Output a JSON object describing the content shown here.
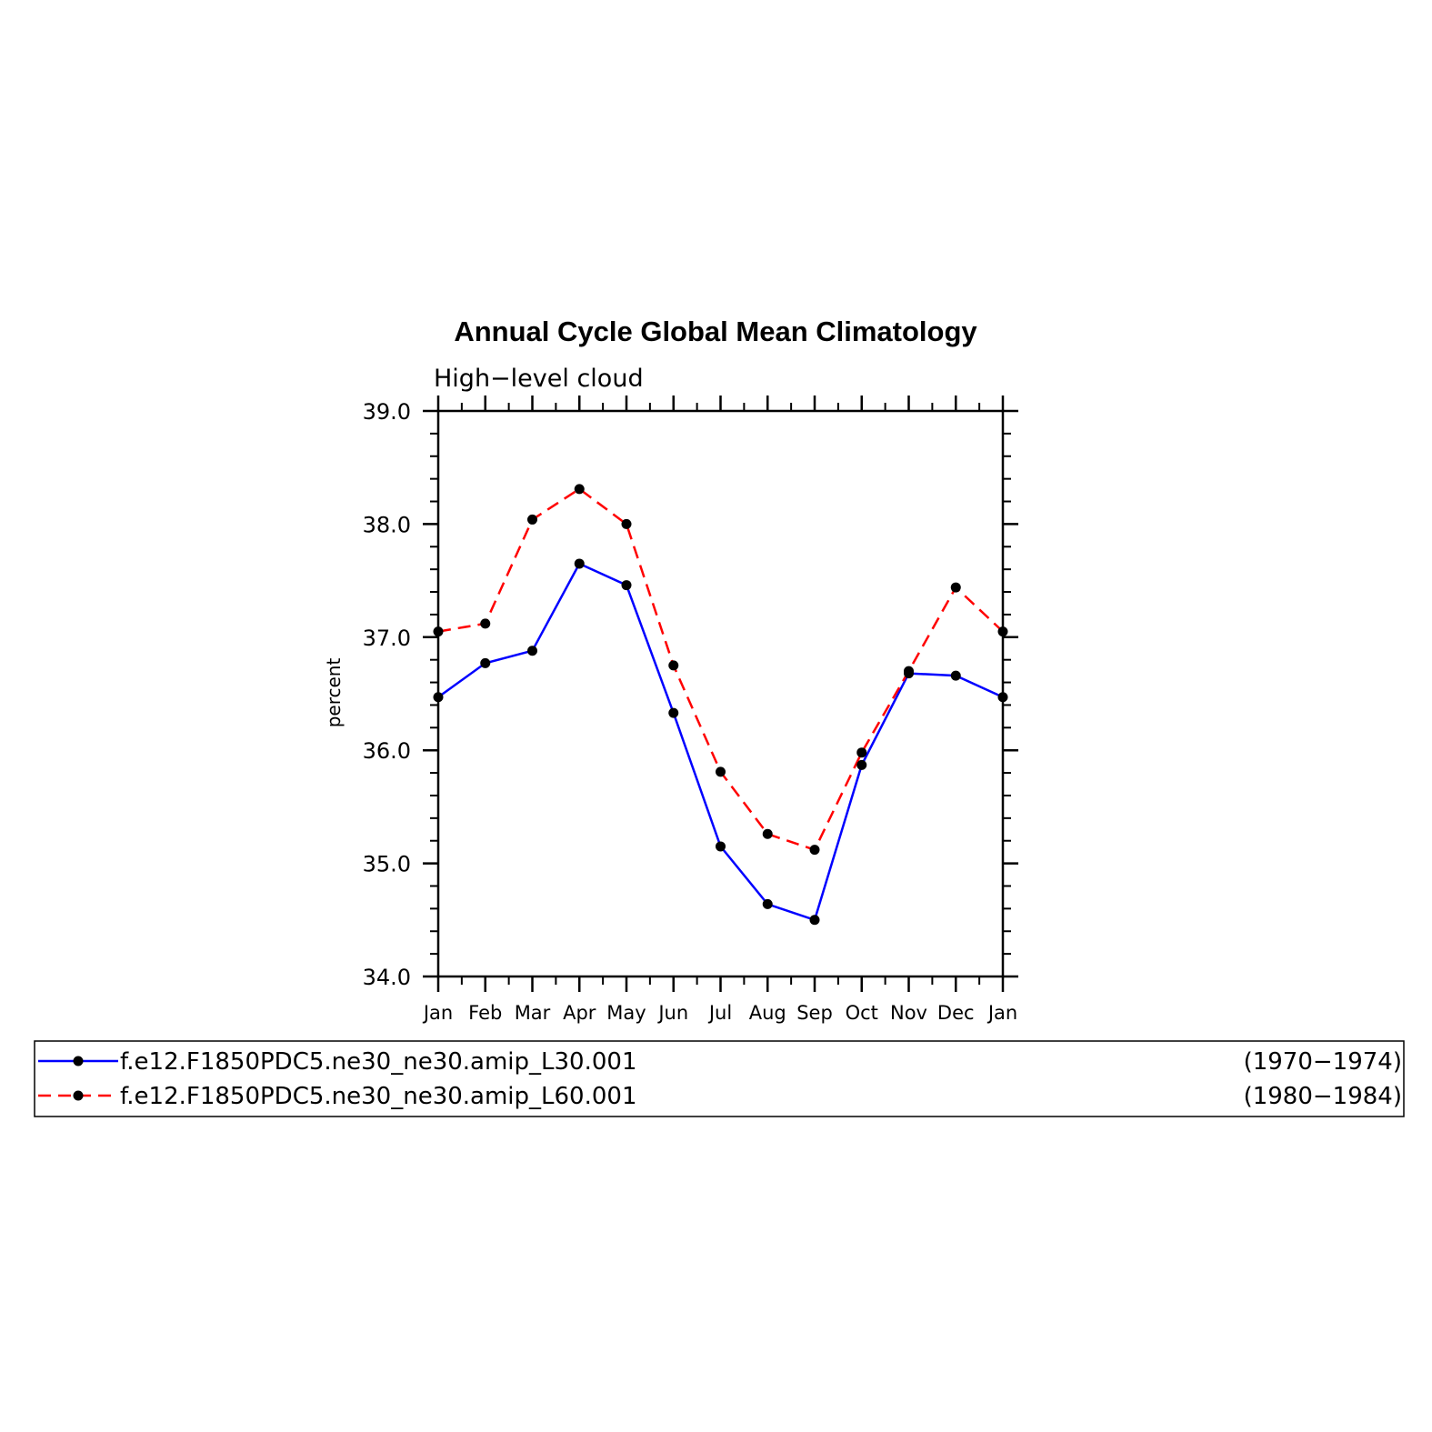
{
  "chart_data": {
    "type": "line",
    "title": "Annual Cycle Global Mean Climatology",
    "subtitle": "High−level  cloud",
    "ylabel": "percent",
    "xlabel": "",
    "categories": [
      "Jan",
      "Feb",
      "Mar",
      "Apr",
      "May",
      "Jun",
      "Jul",
      "Aug",
      "Sep",
      "Oct",
      "Nov",
      "Dec",
      "Jan"
    ],
    "ylim": [
      34.0,
      39.0
    ],
    "yticks": [
      "34.0",
      "35.0",
      "36.0",
      "37.0",
      "38.0",
      "39.0"
    ],
    "ytick_values": [
      34.0,
      35.0,
      36.0,
      37.0,
      38.0,
      39.0
    ],
    "grid": false,
    "legend_placement": "bottom",
    "series": [
      {
        "name": "f.e12.F1850PDC5.ne30_ne30.amip_L30.001",
        "years": "(1970−1974)",
        "color": "#0000ff",
        "dash": "solid",
        "values": [
          36.47,
          36.77,
          36.88,
          37.65,
          37.46,
          36.33,
          35.15,
          34.64,
          34.5,
          35.87,
          36.68,
          36.66,
          36.47
        ]
      },
      {
        "name": "f.e12.F1850PDC5.ne30_ne30.amip_L60.001",
        "years": "(1980−1984)",
        "color": "#ff0000",
        "dash": "dashed",
        "values": [
          37.05,
          37.12,
          38.04,
          38.31,
          38.0,
          36.75,
          35.81,
          35.26,
          35.12,
          35.98,
          36.7,
          37.44,
          37.05
        ]
      }
    ]
  }
}
